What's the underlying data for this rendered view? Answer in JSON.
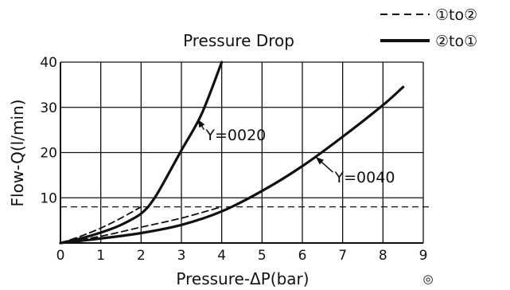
{
  "chart_data": {
    "type": "line",
    "title": "Pressure Drop",
    "xlabel": "Pressure-ΔP(bar)",
    "ylabel": "Flow-Q(l/min)",
    "xlim": [
      0,
      9
    ],
    "ylim": [
      0,
      40
    ],
    "x_ticks": [
      0,
      1,
      2,
      3,
      4,
      5,
      6,
      7,
      8,
      9
    ],
    "y_ticks": [
      10,
      20,
      30,
      40
    ],
    "y_tick_labels": [
      "10",
      "20",
      "30",
      "40"
    ],
    "grid": true,
    "legend_position": "top-right",
    "legend": [
      {
        "label": "①to②",
        "style": "dashed"
      },
      {
        "label": "②to①",
        "style": "solid"
      }
    ],
    "reference_line": {
      "y": 8,
      "style": "dashed"
    },
    "series": [
      {
        "style": "solid",
        "x": [
          0,
          0.5,
          1.0,
          1.5,
          2.0,
          2.3,
          2.6,
          3.0,
          3.5,
          4.0
        ],
        "y": [
          0,
          1.0,
          2.3,
          4.0,
          6.5,
          9.5,
          14,
          20.5,
          28.5,
          40
        ]
      },
      {
        "style": "dashed",
        "x": [
          0,
          0.5,
          1.0,
          1.5,
          2.0
        ],
        "y": [
          0,
          1.5,
          3.3,
          5.5,
          8
        ]
      },
      {
        "style": "solid",
        "x": [
          0,
          1,
          2,
          3,
          4,
          5,
          6,
          7,
          8,
          8.5
        ],
        "y": [
          0,
          1.0,
          2.2,
          4.0,
          7.0,
          11.5,
          17,
          23.5,
          30.5,
          34.5
        ]
      },
      {
        "style": "dashed",
        "x": [
          0,
          1,
          2,
          3,
          4
        ],
        "y": [
          0,
          1.5,
          3.5,
          5.5,
          8
        ]
      }
    ],
    "annotations": [
      {
        "text": "Y=0020",
        "x": 3.6,
        "y": 24,
        "arrow_to_x": 3.42,
        "arrow_to_y": 27.2
      },
      {
        "text": "Y=0040",
        "x": 6.8,
        "y": 14.6,
        "arrow_to_x": 6.35,
        "arrow_to_y": 18.9
      }
    ]
  },
  "corner_mark": "◎"
}
